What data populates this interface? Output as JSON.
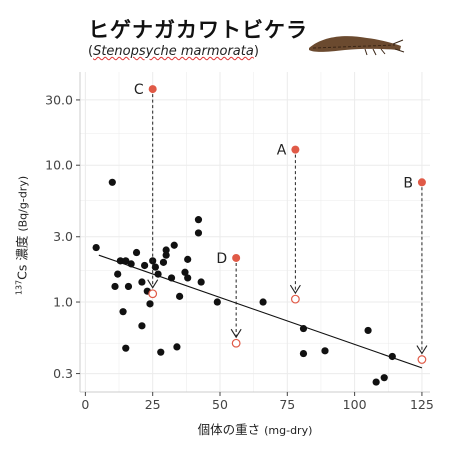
{
  "header": {
    "title": "ヒゲナガカワトビケラ",
    "subtitle_open": "(",
    "subtitle_latin": "Stenopsyche marmorata",
    "subtitle_close": ")",
    "image_icon": "caddisfly-larva-icon"
  },
  "colors": {
    "black_points": "#111111",
    "highlight": "#e05a47",
    "grid": "#ebebeb",
    "trend": "#111111",
    "arrow": "#222222"
  },
  "chart_data": {
    "type": "scatter",
    "xlabel_main": "個体の重さ",
    "xlabel_unit": "(mg-dry)",
    "ylabel_main": "Cs 濃度",
    "ylabel_sup": "137",
    "ylabel_unit": "(Bq/g-dry)",
    "xlim": [
      -2,
      128
    ],
    "ylim": [
      0.22,
      48
    ],
    "y_scale": "log",
    "grid": true,
    "x_ticks": [
      0,
      25,
      50,
      75,
      100,
      125
    ],
    "x_tick_labels": [
      "0",
      "25",
      "50",
      "75",
      "100",
      "125"
    ],
    "y_ticks": [
      0.3,
      1.0,
      3.0,
      10.0,
      30.0
    ],
    "y_tick_labels": [
      "0.3",
      "1.0",
      "3.0",
      "10.0",
      "30.0"
    ],
    "trend_line": {
      "x": [
        5,
        125
      ],
      "y": [
        2.2,
        0.33
      ]
    },
    "series": [
      {
        "kind": "black-filled",
        "points": [
          [
            4,
            2.5
          ],
          [
            10,
            7.5
          ],
          [
            11,
            1.3
          ],
          [
            12,
            1.6
          ],
          [
            13,
            2.0
          ],
          [
            14,
            0.85
          ],
          [
            15,
            2.0
          ],
          [
            15,
            0.46
          ],
          [
            16,
            1.3
          ],
          [
            17,
            1.9
          ],
          [
            19,
            2.3
          ],
          [
            21,
            0.67
          ],
          [
            21,
            1.4
          ],
          [
            22,
            1.85
          ],
          [
            23,
            1.2
          ],
          [
            24,
            0.97
          ],
          [
            25,
            2.0
          ],
          [
            26,
            1.8
          ],
          [
            27,
            1.6
          ],
          [
            28,
            0.43
          ],
          [
            29,
            1.95
          ],
          [
            30,
            2.4
          ],
          [
            30,
            2.2
          ],
          [
            32,
            1.5
          ],
          [
            33,
            2.6
          ],
          [
            34,
            0.47
          ],
          [
            35,
            1.1
          ],
          [
            37,
            1.65
          ],
          [
            38,
            2.05
          ],
          [
            38,
            1.5
          ],
          [
            42,
            4.0
          ],
          [
            42,
            3.2
          ],
          [
            43,
            1.4
          ],
          [
            49,
            1.0
          ],
          [
            66,
            1.0
          ],
          [
            81,
            0.64
          ],
          [
            81,
            0.42
          ],
          [
            89,
            0.44
          ],
          [
            105,
            0.62
          ],
          [
            108,
            0.26
          ],
          [
            111,
            0.28
          ],
          [
            114,
            0.4
          ]
        ]
      },
      {
        "kind": "highlight-labelled",
        "points": [
          {
            "label": "C",
            "x": 25,
            "y": 36,
            "to_y": 1.15
          },
          {
            "label": "A",
            "x": 78,
            "y": 13,
            "to_y": 1.05
          },
          {
            "label": "B",
            "x": 125,
            "y": 7.5,
            "to_y": 0.38
          },
          {
            "label": "D",
            "x": 56,
            "y": 2.1,
            "to_y": 0.5
          }
        ]
      }
    ]
  }
}
